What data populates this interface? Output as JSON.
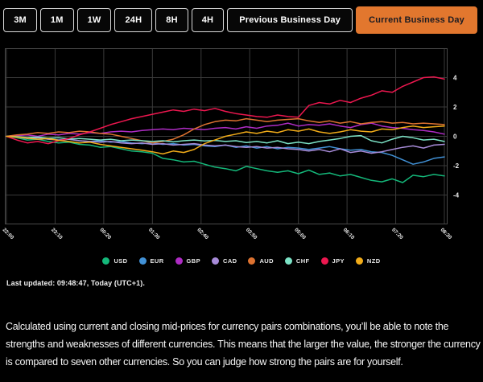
{
  "toolbar": {
    "buttons": [
      {
        "label": "3M",
        "active": false,
        "wide": false
      },
      {
        "label": "1M",
        "active": false,
        "wide": false
      },
      {
        "label": "1W",
        "active": false,
        "wide": false
      },
      {
        "label": "24H",
        "active": false,
        "wide": false
      },
      {
        "label": "8H",
        "active": false,
        "wide": false
      },
      {
        "label": "4H",
        "active": false,
        "wide": false
      },
      {
        "label": "Previous Business Day",
        "active": false,
        "wide": true
      },
      {
        "label": "Current Business Day",
        "active": true,
        "wide": true
      }
    ],
    "active_color": "#e2772e"
  },
  "chart_data": {
    "type": "line",
    "title": "",
    "xlabel": "",
    "ylabel": "",
    "ylim": [
      -6,
      6
    ],
    "grid": true,
    "legend_position": "bottom",
    "x_minutes_start": 0,
    "x_minutes_step": 15,
    "x_minutes_end": 630,
    "x_tick_interval_minutes": 70,
    "x_tick_labels": [
      "22:00",
      "23:10",
      "00:20",
      "01:30",
      "02:40",
      "03:50",
      "05:00",
      "06:10",
      "07:20",
      "08:30"
    ],
    "y_tick_values": [
      4,
      2,
      0,
      -2,
      -4
    ],
    "series": [
      {
        "name": "USD",
        "color": "#14b87a",
        "values": [
          0,
          -0.1,
          -0.25,
          -0.2,
          -0.35,
          -0.45,
          -0.4,
          -0.55,
          -0.6,
          -0.75,
          -0.7,
          -0.85,
          -1.0,
          -1.05,
          -1.15,
          -1.5,
          -1.6,
          -1.75,
          -1.7,
          -1.9,
          -2.1,
          -2.2,
          -2.35,
          -2.05,
          -2.2,
          -2.35,
          -2.45,
          -2.35,
          -2.55,
          -2.3,
          -2.6,
          -2.5,
          -2.7,
          -2.6,
          -2.8,
          -3.0,
          -3.1,
          -2.9,
          -3.15,
          -2.65,
          -2.75,
          -2.6,
          -2.7
        ]
      },
      {
        "name": "EUR",
        "color": "#4191d6",
        "values": [
          0,
          -0.05,
          -0.1,
          -0.2,
          -0.15,
          -0.25,
          -0.2,
          -0.3,
          -0.35,
          -0.3,
          -0.4,
          -0.35,
          -0.45,
          -0.5,
          -0.45,
          -0.55,
          -0.5,
          -0.6,
          -0.55,
          -0.65,
          -0.7,
          -0.6,
          -0.75,
          -0.65,
          -0.8,
          -0.7,
          -0.85,
          -0.75,
          -0.8,
          -0.9,
          -0.8,
          -0.7,
          -0.85,
          -0.95,
          -0.9,
          -1.05,
          -1.1,
          -1.3,
          -1.6,
          -1.9,
          -1.75,
          -1.5,
          -1.4
        ]
      },
      {
        "name": "GBP",
        "color": "#ae2cc4",
        "values": [
          0,
          0.05,
          0.1,
          0.0,
          0.15,
          0.1,
          0.2,
          0.15,
          0.25,
          0.2,
          0.3,
          0.35,
          0.3,
          0.4,
          0.45,
          0.5,
          0.45,
          0.55,
          0.5,
          0.45,
          0.55,
          0.6,
          0.5,
          0.65,
          0.55,
          0.7,
          0.75,
          0.9,
          0.7,
          0.8,
          0.75,
          0.85,
          0.7,
          0.6,
          0.8,
          0.9,
          0.7,
          0.6,
          0.55,
          0.45,
          0.4,
          0.3,
          0.15
        ]
      },
      {
        "name": "CAD",
        "color": "#a78bd8",
        "values": [
          0,
          -0.05,
          -0.15,
          -0.1,
          -0.2,
          -0.25,
          -0.2,
          -0.3,
          -0.35,
          -0.4,
          -0.35,
          -0.45,
          -0.5,
          -0.45,
          -0.55,
          -0.5,
          -0.6,
          -0.55,
          -0.5,
          -0.6,
          -0.65,
          -0.6,
          -0.7,
          -0.75,
          -0.7,
          -0.8,
          -0.75,
          -0.85,
          -0.9,
          -1.0,
          -0.9,
          -1.05,
          -0.85,
          -1.1,
          -1.0,
          -1.15,
          -1.05,
          -0.9,
          -0.75,
          -0.65,
          -0.8,
          -0.6,
          -0.55
        ]
      },
      {
        "name": "AUD",
        "color": "#dd7230",
        "values": [
          0,
          0.1,
          0.15,
          0.25,
          0.2,
          0.3,
          0.25,
          0.35,
          0.3,
          0.2,
          0.15,
          0.0,
          -0.15,
          -0.3,
          -0.45,
          -0.35,
          -0.2,
          0.1,
          0.5,
          0.8,
          1.0,
          1.1,
          1.05,
          1.2,
          1.1,
          1.0,
          1.1,
          1.15,
          1.2,
          1.05,
          0.95,
          1.05,
          0.9,
          1.0,
          0.85,
          0.95,
          1.0,
          0.9,
          0.95,
          0.85,
          0.9,
          0.85,
          0.8
        ]
      },
      {
        "name": "CHF",
        "color": "#7ce3c6",
        "values": [
          0,
          -0.02,
          -0.08,
          -0.05,
          -0.12,
          -0.1,
          -0.18,
          -0.15,
          -0.2,
          -0.25,
          -0.2,
          -0.3,
          -0.25,
          -0.3,
          -0.35,
          -0.3,
          -0.38,
          -0.3,
          -0.25,
          -0.32,
          -0.28,
          -0.35,
          -0.3,
          -0.42,
          -0.35,
          -0.45,
          -0.3,
          -0.5,
          -0.4,
          -0.5,
          -0.35,
          -0.25,
          -0.15,
          0.0,
          0.05,
          -0.3,
          -0.45,
          -0.2,
          0.0,
          -0.1,
          -0.25,
          -0.2,
          -0.35
        ]
      },
      {
        "name": "JPY",
        "color": "#ed174f",
        "values": [
          0,
          -0.25,
          -0.45,
          -0.35,
          -0.5,
          -0.3,
          -0.15,
          0.1,
          0.3,
          0.55,
          0.8,
          1.0,
          1.2,
          1.35,
          1.5,
          1.65,
          1.8,
          1.7,
          1.85,
          1.75,
          1.9,
          1.7,
          1.55,
          1.45,
          1.35,
          1.3,
          1.45,
          1.35,
          1.3,
          2.1,
          2.3,
          2.2,
          2.45,
          2.3,
          2.6,
          2.8,
          3.1,
          3.0,
          3.4,
          3.7,
          4.0,
          4.05,
          3.9
        ]
      },
      {
        "name": "NZD",
        "color": "#f2ac19",
        "values": [
          0,
          -0.05,
          -0.12,
          -0.2,
          -0.15,
          -0.28,
          -0.35,
          -0.45,
          -0.4,
          -0.55,
          -0.65,
          -0.75,
          -0.85,
          -0.95,
          -1.05,
          -1.2,
          -1.0,
          -1.1,
          -0.9,
          -0.5,
          -0.25,
          0.0,
          0.15,
          0.3,
          0.2,
          0.35,
          0.25,
          0.45,
          0.35,
          0.5,
          0.3,
          0.2,
          0.3,
          0.45,
          0.35,
          0.3,
          0.5,
          0.45,
          0.6,
          0.7,
          0.6,
          0.65,
          0.7
        ]
      }
    ]
  },
  "legend": {
    "items": [
      {
        "label": "USD",
        "color": "#14b87a"
      },
      {
        "label": "EUR",
        "color": "#4191d6"
      },
      {
        "label": "GBP",
        "color": "#ae2cc4"
      },
      {
        "label": "CAD",
        "color": "#a78bd8"
      },
      {
        "label": "AUD",
        "color": "#dd7230"
      },
      {
        "label": "CHF",
        "color": "#7ce3c6"
      },
      {
        "label": "JPY",
        "color": "#ed174f"
      },
      {
        "label": "NZD",
        "color": "#f2ac19"
      }
    ]
  },
  "footer": {
    "last_updated": "Last updated: 09:48:47, Today (UTC+1)."
  },
  "description": "Calculated using current and closing mid-prices for currency pairs combinations, you’ll be able to note the strengths and weaknesses of different currencies. This means that the larger the value, the stronger the currency is compared to seven other currencies. So you can judge how strong the pairs are for yourself."
}
